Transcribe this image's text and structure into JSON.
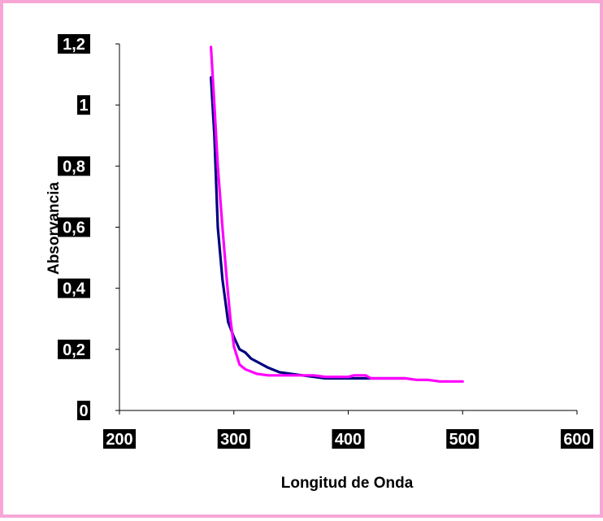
{
  "chart_data": {
    "type": "line",
    "title": "",
    "xlabel": "Longitud de Onda",
    "ylabel": "Absorvancia",
    "xlim": [
      200,
      600
    ],
    "ylim": [
      0,
      1.2
    ],
    "xticks": [
      200,
      300,
      400,
      500,
      600
    ],
    "yticks": [
      0,
      0.2,
      0.4,
      0.6,
      0.8,
      1,
      1.2
    ],
    "xtick_labels": [
      "200",
      "300",
      "400",
      "500",
      "600"
    ],
    "ytick_labels": [
      "0",
      "0,2",
      "0,4",
      "0,6",
      "0,8",
      "1",
      "1,2"
    ],
    "grid": false,
    "legend": "none",
    "series": [
      {
        "color": "#000080",
        "x": [
          280,
          283,
          286,
          290,
          295,
          300,
          305,
          310,
          315,
          320,
          330,
          340,
          350,
          360,
          370,
          380,
          390,
          400,
          410,
          420,
          430,
          440,
          450
        ],
        "y": [
          1.09,
          0.9,
          0.6,
          0.43,
          0.29,
          0.24,
          0.2,
          0.19,
          0.17,
          0.16,
          0.14,
          0.125,
          0.12,
          0.115,
          0.11,
          0.105,
          0.105,
          0.105,
          0.105,
          0.105,
          0.105,
          0.105,
          0.105
        ]
      },
      {
        "color": "#ff00ff",
        "x": [
          280,
          283,
          286,
          290,
          294,
          297,
          300,
          305,
          310,
          320,
          330,
          340,
          350,
          360,
          370,
          380,
          390,
          400,
          405,
          410,
          415,
          420,
          430,
          440,
          450,
          460,
          470,
          480,
          490,
          500
        ],
        "y": [
          1.19,
          1.0,
          0.8,
          0.6,
          0.42,
          0.3,
          0.21,
          0.15,
          0.135,
          0.12,
          0.115,
          0.115,
          0.115,
          0.115,
          0.115,
          0.11,
          0.11,
          0.11,
          0.115,
          0.115,
          0.115,
          0.105,
          0.105,
          0.105,
          0.105,
          0.1,
          0.1,
          0.095,
          0.095,
          0.095
        ]
      }
    ]
  }
}
